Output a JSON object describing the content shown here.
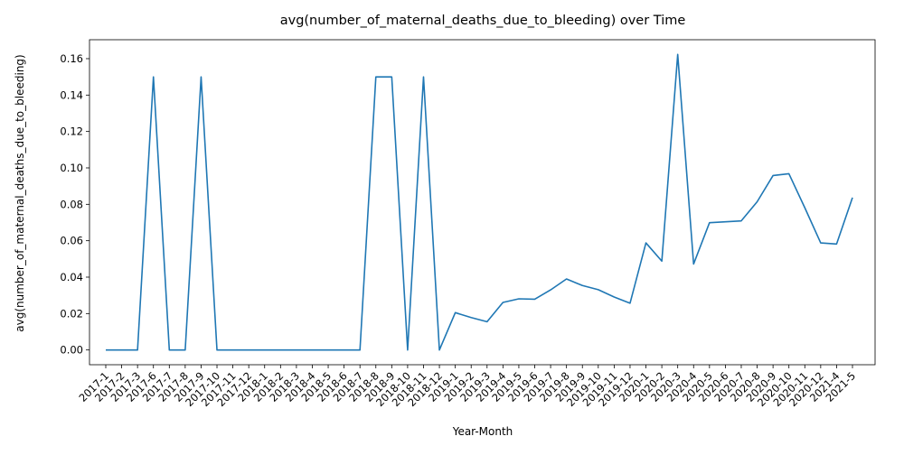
{
  "chart_data": {
    "type": "line",
    "title": "avg(number_of_maternal_deaths_due_to_bleeding) over Time",
    "xlabel": "Year-Month",
    "ylabel": "avg(number_of_maternal_deaths_due_to_bleeding)",
    "ylim": [
      -0.0081,
      0.1704
    ],
    "yticks": [
      0.0,
      0.02,
      0.04,
      0.06,
      0.08,
      0.1,
      0.12,
      0.14,
      0.16
    ],
    "ytick_labels": [
      "0.00",
      "0.02",
      "0.04",
      "0.06",
      "0.08",
      "0.10",
      "0.12",
      "0.14",
      "0.16"
    ],
    "grid": false,
    "line_color": "#1f77b4",
    "categories": [
      "2017-1",
      "2017-2",
      "2017-3",
      "2017-6",
      "2017-7",
      "2017-8",
      "2017-9",
      "2017-10",
      "2017-11",
      "2017-12",
      "2018-1",
      "2018-2",
      "2018-3",
      "2018-4",
      "2018-5",
      "2018-6",
      "2018-7",
      "2018-8",
      "2018-9",
      "2018-10",
      "2018-11",
      "2018-12",
      "2019-1",
      "2019-2",
      "2019-3",
      "2019-4",
      "2019-5",
      "2019-6",
      "2019-7",
      "2019-8",
      "2019-9",
      "2019-10",
      "2019-11",
      "2019-12",
      "2020-1",
      "2020-2",
      "2020-3",
      "2020-4",
      "2020-5",
      "2020-6",
      "2020-7",
      "2020-8",
      "2020-9",
      "2020-10",
      "2020-11",
      "2020-12",
      "2021-4",
      "2021-5"
    ],
    "series": [
      {
        "values": [
          0.0,
          0.0,
          0.0,
          0.15,
          0.0,
          0.0,
          0.15,
          0.0,
          0.0,
          0.0,
          0.0,
          0.0,
          0.0,
          0.0,
          0.0,
          0.0,
          0.0,
          0.15,
          0.15,
          0.0,
          0.15,
          0.0,
          0.0205,
          0.0178,
          0.0155,
          0.0261,
          0.0281,
          0.0279,
          0.033,
          0.039,
          0.0354,
          0.0331,
          0.0291,
          0.0257,
          0.0588,
          0.0488,
          0.1623,
          0.0472,
          0.0699,
          0.0704,
          0.0709,
          0.0814,
          0.0958,
          0.0968,
          0.0781,
          0.0588,
          0.0582,
          0.0837
        ]
      }
    ]
  }
}
